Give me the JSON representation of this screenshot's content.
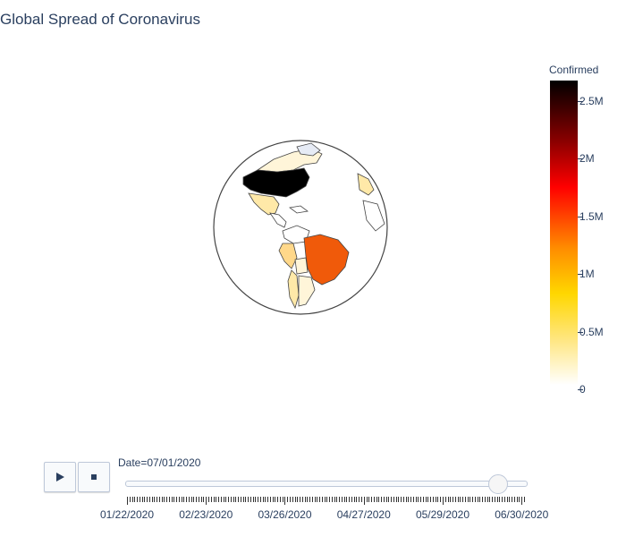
{
  "title": "Global Spread of Coronavirus",
  "colorbar": {
    "title": "Confirmed",
    "ticks": [
      {
        "label": "2.5M",
        "value": 2500000
      },
      {
        "label": "2M",
        "value": 2000000
      },
      {
        "label": "1.5M",
        "value": 1500000
      },
      {
        "label": "1M",
        "value": 1000000
      },
      {
        "label": "0.5M",
        "value": 500000
      },
      {
        "label": "0",
        "value": 0
      }
    ],
    "range": [
      0,
      2640000
    ],
    "colors": [
      "#ffffff",
      "#ffe680",
      "#ffd700",
      "#ff8c00",
      "#ff0000",
      "#8b0000",
      "#000000"
    ]
  },
  "slider": {
    "current_label": "Date=07/01/2020",
    "position_fraction": 0.93,
    "tick_labels": [
      "01/22/2020",
      "02/23/2020",
      "03/26/2020",
      "04/27/2020",
      "05/29/2020",
      "06/30/2020"
    ]
  },
  "controls": {
    "play_icon": "play-icon",
    "stop_icon": "stop-icon"
  },
  "map_data": {
    "projection": "orthographic",
    "highlighted": [
      {
        "region": "United States",
        "color": "#000000"
      },
      {
        "region": "Brazil",
        "color": "#f05a0a"
      },
      {
        "region": "Peru",
        "color": "#ffd88a"
      },
      {
        "region": "Mexico",
        "color": "#ffe9a8"
      },
      {
        "region": "Chile",
        "color": "#ffe9a8"
      },
      {
        "region": "Canada",
        "color": "#fff5d9"
      }
    ]
  }
}
